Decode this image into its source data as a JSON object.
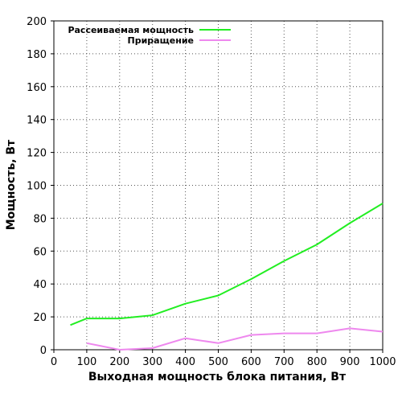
{
  "chart_data": {
    "type": "line",
    "xlabel": "Выходная мощность блока питания, Вт",
    "ylabel": "Мощность, Вт",
    "xlim": [
      0,
      1000
    ],
    "ylim": [
      0,
      200
    ],
    "x_ticks": [
      0,
      100,
      200,
      300,
      400,
      500,
      600,
      700,
      800,
      900,
      1000
    ],
    "y_ticks": [
      0,
      20,
      40,
      60,
      80,
      100,
      120,
      140,
      160,
      180,
      200
    ],
    "grid": true,
    "legend_position": "top-left",
    "series": [
      {
        "name": "Рассеиваемая мощность",
        "color": "#22ee22",
        "x": [
          50,
          100,
          200,
          300,
          400,
          500,
          600,
          700,
          800,
          900,
          1000
        ],
        "y": [
          15,
          19,
          19,
          21,
          28,
          33,
          43,
          54,
          64,
          77,
          89
        ]
      },
      {
        "name": "Приращение",
        "color": "#ee88ee",
        "x": [
          100,
          200,
          300,
          400,
          500,
          600,
          700,
          800,
          900,
          1000
        ],
        "y": [
          4,
          0,
          1,
          7,
          4,
          9,
          10,
          10,
          13,
          11
        ]
      }
    ]
  }
}
